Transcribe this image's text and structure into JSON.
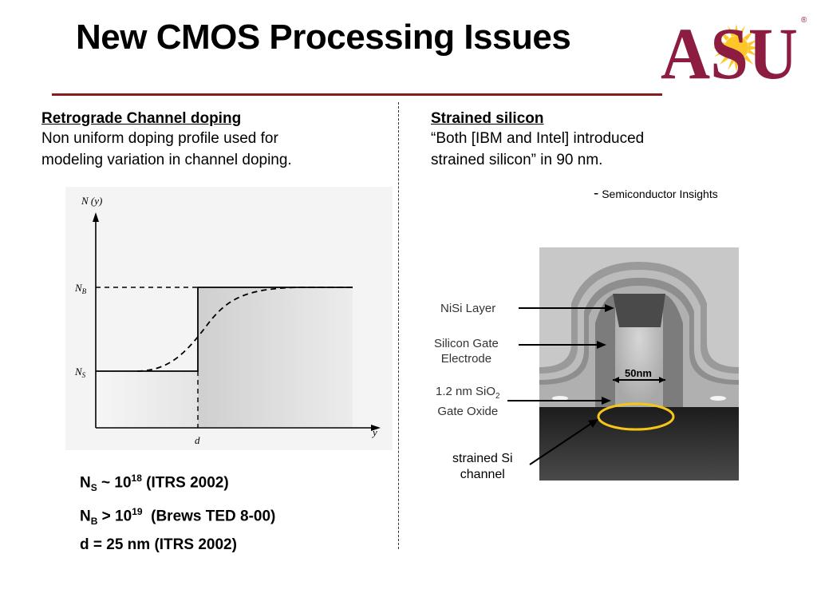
{
  "slide": {
    "title": "New CMOS Processing Issues",
    "logo": {
      "text": "ASU",
      "registered": "®",
      "colors": {
        "maroon": "#8C1D40",
        "gold": "#FFC627"
      }
    }
  },
  "left": {
    "heading": "Retrograde Channel doping",
    "line1": "Non uniform doping profile used for",
    "line2": "modeling variation in channel doping.",
    "graph": {
      "y_axis_label": "N (y)",
      "x_axis_label": "y",
      "level_high": "N",
      "level_high_sub": "B",
      "level_low": "N",
      "level_low_sub": "S",
      "x_tick": "d"
    },
    "formulas": [
      {
        "a": "N",
        "sub": "S",
        "b": " ~ 10",
        "sup": "18",
        "c": " (ITRS 2002)"
      },
      {
        "a": "N",
        "sub": "B",
        "b": " > 10",
        "sup": "19",
        "c": "  (Brews TED 8-00)"
      },
      {
        "a": "d = 25 nm (ITRS 2002)"
      }
    ]
  },
  "right": {
    "heading": "Strained silicon",
    "line1": "“Both [IBM and Intel] introduced",
    "line2": "strained silicon” in 90 nm.",
    "citation_dash": "-",
    "citation": "Semiconductor Insights",
    "tem": {
      "nisi": "NiSi Layer",
      "gate1": "Silicon Gate",
      "gate2": "Electrode",
      "oxide1": "1.2 nm SiO",
      "oxide_sub": "2",
      "oxide2": "Gate Oxide",
      "scale": "50nm",
      "strained1": "strained Si",
      "strained2": "channel",
      "highlight_color": "#F5C518"
    }
  }
}
